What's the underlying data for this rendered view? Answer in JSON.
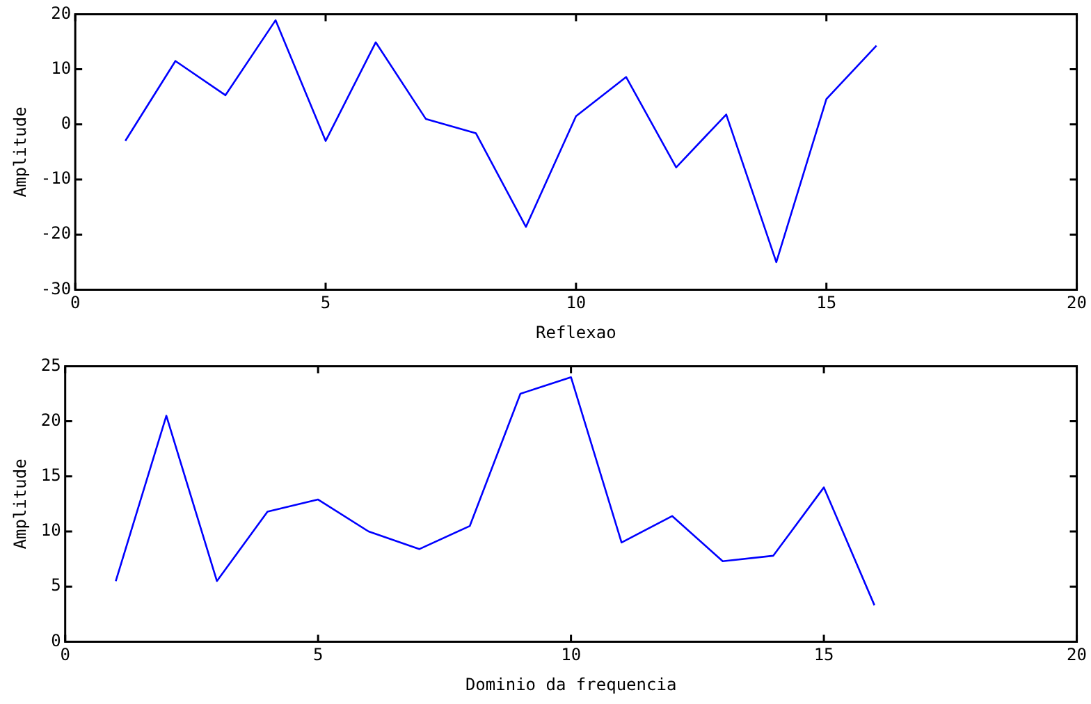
{
  "chart_data": [
    {
      "type": "line",
      "xlabel": "Reflexao",
      "ylabel": "Amplitude",
      "x": [
        1,
        2,
        3,
        4,
        5,
        6,
        7,
        8,
        9,
        10,
        11,
        12,
        13,
        14,
        15,
        16
      ],
      "series": [
        {
          "color": "#0000ff",
          "values": [
            -3,
            11.5,
            5.3,
            18.9,
            -3,
            14.9,
            1,
            -1.6,
            -18.6,
            1.5,
            8.6,
            -7.8,
            1.8,
            -25,
            4.6,
            14.3
          ]
        }
      ],
      "xlim": [
        0,
        20
      ],
      "xticks": [
        0,
        5,
        10,
        15,
        20
      ],
      "ylim": [
        -30,
        20
      ],
      "yticks": [
        -30,
        -20,
        -10,
        0,
        10,
        20
      ],
      "grid": false,
      "legend": false,
      "marker": "none",
      "line_style": "solid"
    },
    {
      "type": "line",
      "xlabel": "Dominio da frequencia",
      "ylabel": "Amplitude",
      "x": [
        1,
        2,
        3,
        4,
        5,
        6,
        7,
        8,
        9,
        10,
        11,
        12,
        13,
        14,
        15,
        16
      ],
      "series": [
        {
          "color": "#0000ff",
          "values": [
            5.5,
            20.5,
            5.5,
            11.8,
            12.9,
            10,
            8.4,
            10.5,
            22.5,
            24,
            9,
            11.4,
            7.3,
            7.8,
            14,
            3.3
          ]
        }
      ],
      "xlim": [
        0,
        20
      ],
      "xticks": [
        0,
        5,
        10,
        15,
        20
      ],
      "ylim": [
        0,
        25
      ],
      "yticks": [
        0,
        5,
        10,
        15,
        20,
        25
      ],
      "grid": false,
      "legend": false,
      "marker": "none",
      "line_style": "solid"
    }
  ]
}
